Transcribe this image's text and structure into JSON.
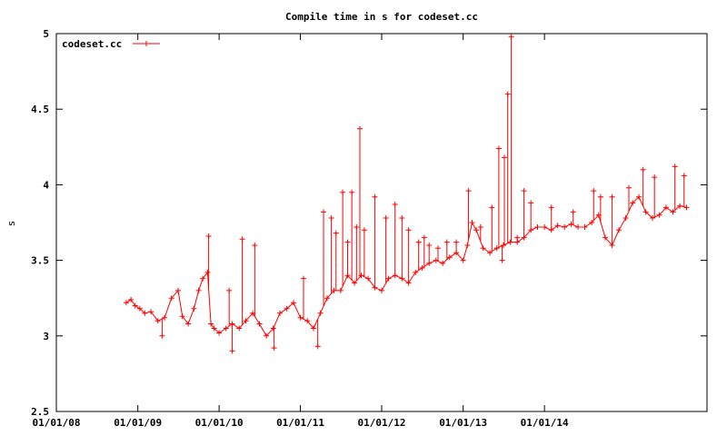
{
  "chart_data": {
    "type": "line",
    "title": "Compile time in s for codeset.cc",
    "xlabel": "",
    "ylabel": "s",
    "xlim": [
      "2008-01-01",
      "2016-01-01"
    ],
    "ylim": [
      2.5,
      5
    ],
    "grid": false,
    "legend": {
      "placement": "top-left",
      "entries": [
        "codeset.cc"
      ]
    },
    "x_ticks": [
      "01/01/08",
      "01/01/09",
      "01/01/10",
      "01/01/11",
      "01/01/12",
      "01/01/13",
      "01/01/14"
    ],
    "y_ticks": [
      "2.5",
      "3",
      "3.5",
      "4",
      "4.5",
      "5"
    ],
    "series": [
      {
        "name": "codeset.cc",
        "color": "#ff0000",
        "marker": "plus",
        "points": [
          [
            "2008-11-10",
            3.22
          ],
          [
            "2008-12-01",
            3.24
          ],
          [
            "2008-12-20",
            3.2
          ],
          [
            "2009-01-10",
            3.18
          ],
          [
            "2009-02-01",
            3.15
          ],
          [
            "2009-03-01",
            3.16
          ],
          [
            "2009-04-01",
            3.1
          ],
          [
            "2009-05-01",
            3.12
          ],
          [
            "2009-06-01",
            3.25
          ],
          [
            "2009-07-01",
            3.3
          ],
          [
            "2009-07-20",
            3.13
          ],
          [
            "2009-08-15",
            3.08
          ],
          [
            "2009-09-10",
            3.18
          ],
          [
            "2009-10-01",
            3.3
          ],
          [
            "2009-10-20",
            3.38
          ],
          [
            "2009-11-10",
            3.42
          ],
          [
            "2009-11-25",
            3.08
          ],
          [
            "2009-12-10",
            3.05
          ],
          [
            "2010-01-01",
            3.02
          ],
          [
            "2010-02-01",
            3.05
          ],
          [
            "2010-03-01",
            3.08
          ],
          [
            "2010-04-01",
            3.05
          ],
          [
            "2010-05-01",
            3.1
          ],
          [
            "2010-06-01",
            3.15
          ],
          [
            "2010-07-01",
            3.08
          ],
          [
            "2010-08-01",
            3.0
          ],
          [
            "2010-09-01",
            3.05
          ],
          [
            "2010-10-01",
            3.15
          ],
          [
            "2010-11-01",
            3.18
          ],
          [
            "2010-12-01",
            3.22
          ],
          [
            "2011-01-01",
            3.12
          ],
          [
            "2011-02-01",
            3.1
          ],
          [
            "2011-03-01",
            3.05
          ],
          [
            "2011-04-01",
            3.15
          ],
          [
            "2011-05-01",
            3.25
          ],
          [
            "2011-06-01",
            3.3
          ],
          [
            "2011-07-01",
            3.3
          ],
          [
            "2011-08-01",
            3.4
          ],
          [
            "2011-09-01",
            3.35
          ],
          [
            "2011-10-01",
            3.4
          ],
          [
            "2011-11-01",
            3.38
          ],
          [
            "2011-12-01",
            3.32
          ],
          [
            "2012-01-01",
            3.3
          ],
          [
            "2012-02-01",
            3.38
          ],
          [
            "2012-03-01",
            3.4
          ],
          [
            "2012-04-01",
            3.38
          ],
          [
            "2012-05-01",
            3.35
          ],
          [
            "2012-06-01",
            3.42
          ],
          [
            "2012-07-01",
            3.45
          ],
          [
            "2012-08-01",
            3.48
          ],
          [
            "2012-09-01",
            3.5
          ],
          [
            "2012-10-01",
            3.48
          ],
          [
            "2012-11-01",
            3.52
          ],
          [
            "2012-12-01",
            3.55
          ],
          [
            "2013-01-01",
            3.5
          ],
          [
            "2013-01-20",
            3.6
          ],
          [
            "2013-02-10",
            3.75
          ],
          [
            "2013-03-01",
            3.7
          ],
          [
            "2013-04-01",
            3.58
          ],
          [
            "2013-05-01",
            3.55
          ],
          [
            "2013-06-01",
            3.58
          ],
          [
            "2013-07-01",
            3.6
          ],
          [
            "2013-08-01",
            3.62
          ],
          [
            "2013-09-01",
            3.62
          ],
          [
            "2013-10-01",
            3.65
          ],
          [
            "2013-11-01",
            3.7
          ],
          [
            "2013-12-01",
            3.72
          ],
          [
            "2014-01-01",
            3.72
          ],
          [
            "2014-02-01",
            3.7
          ],
          [
            "2014-03-01",
            3.73
          ],
          [
            "2014-04-01",
            3.72
          ],
          [
            "2014-05-01",
            3.74
          ],
          [
            "2014-06-01",
            3.72
          ],
          [
            "2014-07-01",
            3.72
          ],
          [
            "2014-08-01",
            3.75
          ],
          [
            "2014-09-01",
            3.8
          ],
          [
            "2014-10-01",
            3.65
          ],
          [
            "2014-11-01",
            3.6
          ],
          [
            "2014-12-01",
            3.7
          ],
          [
            "2015-01-01",
            3.78
          ],
          [
            "2015-02-01",
            3.88
          ],
          [
            "2015-03-01",
            3.92
          ],
          [
            "2015-04-01",
            3.82
          ],
          [
            "2015-05-01",
            3.78
          ],
          [
            "2015-06-01",
            3.8
          ],
          [
            "2015-07-01",
            3.85
          ],
          [
            "2015-08-01",
            3.82
          ],
          [
            "2015-09-01",
            3.86
          ],
          [
            "2015-10-01",
            3.85
          ]
        ],
        "spikes": [
          [
            "2009-04-20",
            3.0
          ],
          [
            "2009-11-15",
            3.66
          ],
          [
            "2010-02-15",
            3.3
          ],
          [
            "2010-03-01",
            2.9
          ],
          [
            "2010-04-15",
            3.64
          ],
          [
            "2010-06-10",
            3.6
          ],
          [
            "2010-09-05",
            2.92
          ],
          [
            "2011-01-15",
            3.38
          ],
          [
            "2011-03-20",
            2.93
          ],
          [
            "2011-04-15",
            3.82
          ],
          [
            "2011-05-20",
            3.78
          ],
          [
            "2011-06-10",
            3.68
          ],
          [
            "2011-07-10",
            3.95
          ],
          [
            "2011-08-01",
            3.62
          ],
          [
            "2011-08-20",
            3.95
          ],
          [
            "2011-09-10",
            3.72
          ],
          [
            "2011-09-25",
            4.37
          ],
          [
            "2011-10-15",
            3.7
          ],
          [
            "2011-12-01",
            3.92
          ],
          [
            "2012-01-20",
            3.78
          ],
          [
            "2012-03-01",
            3.87
          ],
          [
            "2012-04-01",
            3.78
          ],
          [
            "2012-05-01",
            3.7
          ],
          [
            "2012-06-15",
            3.62
          ],
          [
            "2012-07-10",
            3.65
          ],
          [
            "2012-08-01",
            3.6
          ],
          [
            "2012-09-10",
            3.58
          ],
          [
            "2012-10-20",
            3.62
          ],
          [
            "2012-12-01",
            3.62
          ],
          [
            "2013-01-25",
            3.96
          ],
          [
            "2013-03-20",
            3.72
          ],
          [
            "2013-05-10",
            3.85
          ],
          [
            "2013-06-10",
            4.24
          ],
          [
            "2013-06-25",
            3.5
          ],
          [
            "2013-07-05",
            4.18
          ],
          [
            "2013-07-20",
            4.6
          ],
          [
            "2013-08-05",
            4.98
          ],
          [
            "2013-09-01",
            3.65
          ],
          [
            "2013-10-01",
            3.96
          ],
          [
            "2013-11-01",
            3.88
          ],
          [
            "2014-02-01",
            3.85
          ],
          [
            "2014-05-10",
            3.82
          ],
          [
            "2014-08-10",
            3.96
          ],
          [
            "2014-09-10",
            3.92
          ],
          [
            "2014-11-01",
            3.92
          ],
          [
            "2015-01-15",
            3.98
          ],
          [
            "2015-03-20",
            4.1
          ],
          [
            "2015-05-10",
            4.05
          ],
          [
            "2015-08-10",
            4.12
          ],
          [
            "2015-09-20",
            4.06
          ]
        ]
      }
    ]
  }
}
